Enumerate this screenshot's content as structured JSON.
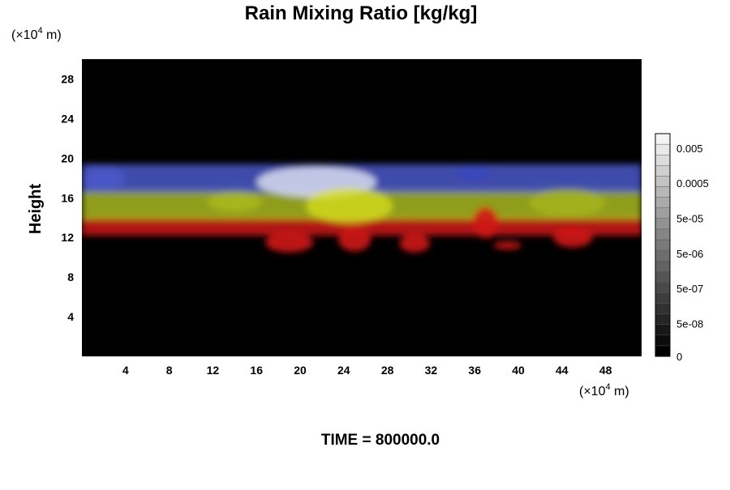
{
  "chart_data": {
    "type": "heatmap",
    "title": "Rain Mixing Ratio [kg/kg]",
    "ylabel": "Height",
    "y_unit_label": "(×10",
    "y_unit_exp": "4",
    "y_unit_suffix": " m)",
    "x_unit_label": "(×10",
    "x_unit_exp": "4",
    "x_unit_suffix": " m)",
    "xlim": [
      0,
      51.3
    ],
    "ylim": [
      0,
      30
    ],
    "x_ticks": [
      4,
      8,
      12,
      16,
      20,
      24,
      28,
      32,
      36,
      40,
      44,
      48
    ],
    "y_ticks": [
      4,
      8,
      12,
      16,
      20,
      24,
      28
    ],
    "background_color": "#000000",
    "bands": [
      {
        "color": "#d01818",
        "bottom": 12.2,
        "top": 14.2
      },
      {
        "color": "#a8b81c",
        "bottom": 13.8,
        "top": 17.0
      },
      {
        "color": "#4a58c8",
        "bottom": 16.5,
        "top": 19.4
      }
    ],
    "clouds": [
      {
        "x": 21.5,
        "y": 17.6,
        "rx": 5.5,
        "ry": 1.6,
        "color": "#d8dcf0",
        "opacity": 0.85
      },
      {
        "x": 24.5,
        "y": 15.2,
        "rx": 4.0,
        "ry": 1.8,
        "color": "#d8e020",
        "opacity": 0.75
      },
      {
        "x": 19.0,
        "y": 11.5,
        "rx": 2.2,
        "ry": 1.0,
        "color": "#d01818",
        "opacity": 0.9
      },
      {
        "x": 25.0,
        "y": 11.8,
        "rx": 1.5,
        "ry": 1.2,
        "color": "#d01818",
        "opacity": 0.9
      },
      {
        "x": 30.5,
        "y": 11.4,
        "rx": 1.4,
        "ry": 0.9,
        "color": "#d01818",
        "opacity": 0.9
      },
      {
        "x": 37.0,
        "y": 13.5,
        "rx": 1.2,
        "ry": 1.6,
        "color": "#d01818",
        "opacity": 0.9
      },
      {
        "x": 45.0,
        "y": 12.0,
        "rx": 1.8,
        "ry": 1.0,
        "color": "#d01818",
        "opacity": 0.9
      },
      {
        "x": 39.0,
        "y": 11.2,
        "rx": 1.3,
        "ry": 0.4,
        "color": "#d01818",
        "opacity": 0.9
      },
      {
        "x": 2.0,
        "y": 18.0,
        "rx": 2.0,
        "ry": 1.2,
        "color": "#4a58c8",
        "opacity": 0.9
      },
      {
        "x": 36.0,
        "y": 18.5,
        "rx": 1.5,
        "ry": 0.8,
        "color": "#3848c0",
        "opacity": 0.8
      },
      {
        "x": 44.5,
        "y": 15.5,
        "rx": 3.5,
        "ry": 1.4,
        "color": "#a8b81c",
        "opacity": 0.7
      },
      {
        "x": 14.0,
        "y": 15.6,
        "rx": 2.5,
        "ry": 1.0,
        "color": "#b8c420",
        "opacity": 0.6
      }
    ],
    "colorbar": {
      "tick_labels": [
        "0.005",
        "0.0005",
        "5e-05",
        "5e-06",
        "5e-07",
        "5e-08",
        "0"
      ],
      "tick_fractions": [
        0.934,
        0.778,
        0.62,
        0.462,
        0.305,
        0.148,
        0
      ],
      "levels": 21,
      "color_low": "#000000",
      "color_high": "#f4f4f4"
    },
    "footer": "TIME = 800000.0"
  }
}
